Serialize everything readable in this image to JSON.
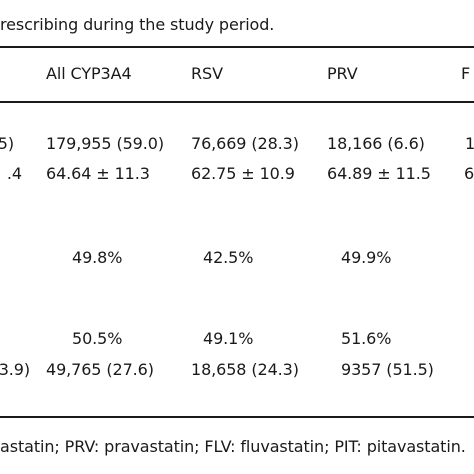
{
  "caption": "rescribing during the study period.",
  "header": {
    "col_cut": "",
    "all_cyp3a4": "All CYP3A4",
    "rsv": "RSV",
    "prv": "PRV",
    "flv_cut": "F"
  },
  "rows": [
    {
      "cut_left": "5)",
      "all_cyp3a4": "179,955 (59.0)",
      "rsv": "76,669 (28.3)",
      "prv": "18,166 (6.6)",
      "cut_right": "1"
    },
    {
      "cut_left": ".4",
      "all_cyp3a4": "64.64 ± 11.3",
      "rsv": "62.75 ± 10.9",
      "prv": "64.89 ± 11.5",
      "cut_right": "6"
    },
    {
      "cut_left": "",
      "all_cyp3a4": "49.8%",
      "rsv": "42.5%",
      "prv": "49.9%",
      "cut_right": ""
    },
    {
      "cut_left": "",
      "all_cyp3a4": "50.5%",
      "rsv": "49.1%",
      "prv": "51.6%",
      "cut_right": ""
    },
    {
      "cut_left": "3.9)",
      "all_cyp3a4": "49,765 (27.6)",
      "rsv": "18,658 (24.3)",
      "prv": "9357 (51.5)",
      "cut_right": ""
    }
  ],
  "footnote": "astatin; PRV: pravastatin; FLV: fluvastatin; PIT: pitavastatin."
}
